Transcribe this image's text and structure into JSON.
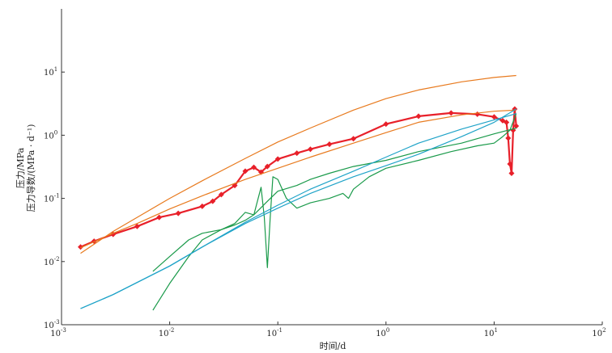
{
  "chart_data": {
    "type": "line",
    "title": "",
    "xlabel": "时间/d",
    "ylabel": [
      "压力/MPa",
      "压力导数/(MPa · d⁻¹)"
    ],
    "x_scale": "log",
    "y_scale": "log",
    "xlim": [
      0.001,
      100
    ],
    "ylim": [
      0.001,
      100
    ],
    "grid": false,
    "legend": "none",
    "x_ticks": [
      {
        "base": "10",
        "exp": "-3"
      },
      {
        "base": "10",
        "exp": "-2"
      },
      {
        "base": "10",
        "exp": "-1"
      },
      {
        "base": "10",
        "exp": "0"
      },
      {
        "base": "10",
        "exp": "1"
      },
      {
        "base": "10",
        "exp": "2"
      }
    ],
    "y_ticks": [
      {
        "base": "10",
        "exp": "-3"
      },
      {
        "base": "10",
        "exp": "-2"
      },
      {
        "base": "10",
        "exp": "-1"
      },
      {
        "base": "10",
        "exp": "0"
      },
      {
        "base": "10",
        "exp": "1"
      }
    ],
    "colors": {
      "measured_pressure": "#e8202a",
      "measured_derivative": "#1a9a4a",
      "model_pressure": "#e87a1e",
      "model_derivative": "#1fa3c8",
      "axis": "#333333"
    },
    "series": [
      {
        "role": "measured_pressure",
        "markers": true,
        "x": [
          0.0015,
          0.002,
          0.003,
          0.005,
          0.008,
          0.012,
          0.02,
          0.025,
          0.03,
          0.04,
          0.05,
          0.06,
          0.07,
          0.08,
          0.1,
          0.15,
          0.2,
          0.3,
          0.5,
          1,
          2,
          4,
          7,
          10,
          12,
          13,
          13.5,
          14,
          14.5,
          15,
          15.5,
          16
        ],
        "y": [
          0.017,
          0.021,
          0.027,
          0.036,
          0.05,
          0.058,
          0.075,
          0.09,
          0.115,
          0.16,
          0.27,
          0.31,
          0.26,
          0.32,
          0.42,
          0.52,
          0.6,
          0.72,
          0.88,
          1.5,
          2.0,
          2.25,
          2.15,
          1.95,
          1.7,
          1.6,
          0.9,
          0.35,
          0.25,
          1.2,
          2.6,
          1.4
        ]
      },
      {
        "role": "measured_derivative",
        "markers": false,
        "x": [
          0.007,
          0.01,
          0.015,
          0.02,
          0.03,
          0.04,
          0.05,
          0.06,
          0.07,
          0.075,
          0.08,
          0.085,
          0.09,
          0.1,
          0.12,
          0.15,
          0.2,
          0.3,
          0.4,
          0.45,
          0.5,
          0.7,
          1,
          2,
          4,
          7,
          10,
          12,
          14,
          16
        ],
        "y": [
          0.007,
          0.012,
          0.022,
          0.028,
          0.032,
          0.04,
          0.06,
          0.055,
          0.15,
          0.05,
          0.008,
          0.05,
          0.22,
          0.2,
          0.1,
          0.07,
          0.085,
          0.1,
          0.12,
          0.1,
          0.14,
          0.22,
          0.3,
          0.4,
          0.55,
          0.68,
          0.75,
          0.95,
          1.2,
          2.2
        ]
      },
      {
        "role": "measured_derivative",
        "markers": false,
        "x": [
          0.007,
          0.01,
          0.015,
          0.02,
          0.03,
          0.04,
          0.05,
          0.06,
          0.08,
          0.1,
          0.15,
          0.2,
          0.3,
          0.5,
          1,
          2,
          5,
          10,
          16
        ],
        "y": [
          0.0017,
          0.0045,
          0.012,
          0.022,
          0.032,
          0.038,
          0.045,
          0.055,
          0.09,
          0.13,
          0.16,
          0.2,
          0.25,
          0.32,
          0.4,
          0.55,
          0.75,
          1.05,
          1.3
        ]
      },
      {
        "role": "model_pressure",
        "markers": false,
        "x": [
          0.0015,
          0.003,
          0.005,
          0.01,
          0.02,
          0.05,
          0.1,
          0.2,
          0.5,
          1,
          2,
          5,
          10,
          16
        ],
        "y": [
          0.0135,
          0.03,
          0.05,
          0.1,
          0.19,
          0.43,
          0.78,
          1.3,
          2.5,
          3.8,
          5.2,
          7.0,
          8.2,
          8.8
        ]
      },
      {
        "role": "model_pressure",
        "markers": false,
        "x": [
          0.0015,
          0.003,
          0.005,
          0.01,
          0.02,
          0.05,
          0.1,
          0.2,
          0.5,
          1,
          2,
          5,
          10,
          16
        ],
        "y": [
          0.0165,
          0.028,
          0.04,
          0.068,
          0.11,
          0.2,
          0.3,
          0.45,
          0.75,
          1.1,
          1.6,
          2.1,
          2.4,
          2.5
        ]
      },
      {
        "role": "model_derivative",
        "markers": false,
        "x": [
          0.0015,
          0.003,
          0.01,
          0.02,
          0.05,
          0.1,
          0.2,
          0.5,
          1,
          2,
          5,
          10,
          16
        ],
        "y": [
          0.0018,
          0.003,
          0.0085,
          0.017,
          0.04,
          0.07,
          0.12,
          0.22,
          0.33,
          0.5,
          0.95,
          1.6,
          2.6
        ]
      },
      {
        "role": "model_derivative",
        "markers": false,
        "x": [
          0.0015,
          0.003,
          0.01,
          0.02,
          0.05,
          0.1,
          0.2,
          0.5,
          1,
          2,
          5,
          10,
          16
        ],
        "y": [
          0.0018,
          0.003,
          0.0085,
          0.017,
          0.042,
          0.078,
          0.14,
          0.27,
          0.45,
          0.75,
          1.25,
          1.75,
          2.2
        ]
      }
    ]
  }
}
